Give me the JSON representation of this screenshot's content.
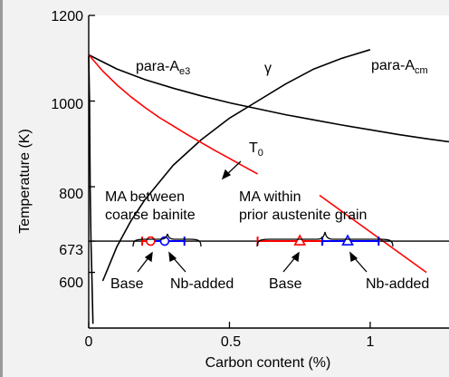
{
  "chart_data": {
    "type": "line",
    "xlabel": "Carbon content (%)",
    "ylabel": "Temperature (K)",
    "xlim": [
      0,
      1.28
    ],
    "ylim": [
      470,
      1200
    ],
    "x_ticks": [
      {
        "value": 0,
        "label": "0"
      },
      {
        "value": 0.5,
        "label": "0.5"
      },
      {
        "value": 1,
        "label": "1"
      }
    ],
    "y_ticks": [
      {
        "value": 600,
        "label": "600"
      },
      {
        "value": 673,
        "label": "673"
      },
      {
        "value": 800,
        "label": "800"
      },
      {
        "value": 1000,
        "label": "1000"
      },
      {
        "value": 1200,
        "label": "1200"
      }
    ],
    "series": [
      {
        "key": "ae3_low",
        "color": "#000000",
        "x": [
          0.0,
          0.003,
          0.005,
          0.008,
          0.011,
          0.015
        ],
        "y": [
          1105,
          1000,
          800,
          673,
          600,
          480
        ]
      },
      {
        "key": "ae3",
        "color": "#000000",
        "x": [
          0.0,
          0.1,
          0.2,
          0.3,
          0.4,
          0.5,
          0.6,
          0.7,
          0.8,
          0.9,
          1.0,
          1.1,
          1.2,
          1.28
        ],
        "y": [
          1108,
          1075,
          1050,
          1030,
          1012,
          996,
          982,
          968,
          956,
          944,
          933,
          922,
          912,
          905
        ]
      },
      {
        "key": "acm",
        "color": "#000000",
        "x": [
          0.05,
          0.1,
          0.15,
          0.2,
          0.3,
          0.4,
          0.5,
          0.6,
          0.7,
          0.8,
          0.9,
          1.0
        ],
        "y": [
          580,
          660,
          720,
          770,
          850,
          910,
          960,
          1000,
          1040,
          1075,
          1100,
          1120
        ]
      },
      {
        "key": "t0",
        "color": "#ff0000",
        "x": [
          0.0,
          0.05,
          0.1,
          0.15,
          0.2,
          0.25,
          0.3,
          0.35,
          0.4,
          0.45,
          0.5,
          0.55,
          0.6
        ],
        "y": [
          1108,
          1070,
          1038,
          1010,
          985,
          962,
          942,
          922,
          903,
          884,
          866,
          848,
          830
        ]
      },
      {
        "key": "t0_low",
        "color": "#ff0000",
        "x": [
          0.82,
          1.2
        ],
        "y": [
          780,
          600
        ]
      }
    ],
    "hline": {
      "y": 673,
      "x0": 0,
      "x1": 1.28
    },
    "markers": [
      {
        "x": 0.22,
        "shape": "circle",
        "color": "#ff0000"
      },
      {
        "x": 0.27,
        "shape": "circle",
        "color": "#0000ff"
      },
      {
        "x": 0.75,
        "shape": "triangle",
        "color": "#ff0000"
      },
      {
        "x": 0.92,
        "shape": "triangle",
        "color": "#0000ff"
      }
    ],
    "ranges": [
      {
        "x0": 0.19,
        "x1": 0.225,
        "color": "#ff0000"
      },
      {
        "x0": 0.225,
        "x1": 0.34,
        "color": "#0000ff"
      },
      {
        "x0": 0.6,
        "x1": 0.83,
        "color": "#ff0000"
      },
      {
        "x0": 0.83,
        "x1": 1.03,
        "color": "#0000ff"
      }
    ],
    "annotations": {
      "ae3_label_main": "para-A",
      "ae3_label_sub": "e3",
      "acm_label_main": "para-A",
      "acm_label_sub": "cm",
      "gamma": "γ",
      "t0_label_main": "T",
      "t0_label_sub": "0",
      "ma_bainite_1": "MA between",
      "ma_bainite_2": "coarse bainite",
      "ma_grain_1": "MA within",
      "ma_grain_2": "prior austenite grain",
      "base_1": "Base",
      "nb_1": "Nb-added",
      "base_2": "Base",
      "nb_2": "Nb-added"
    }
  }
}
